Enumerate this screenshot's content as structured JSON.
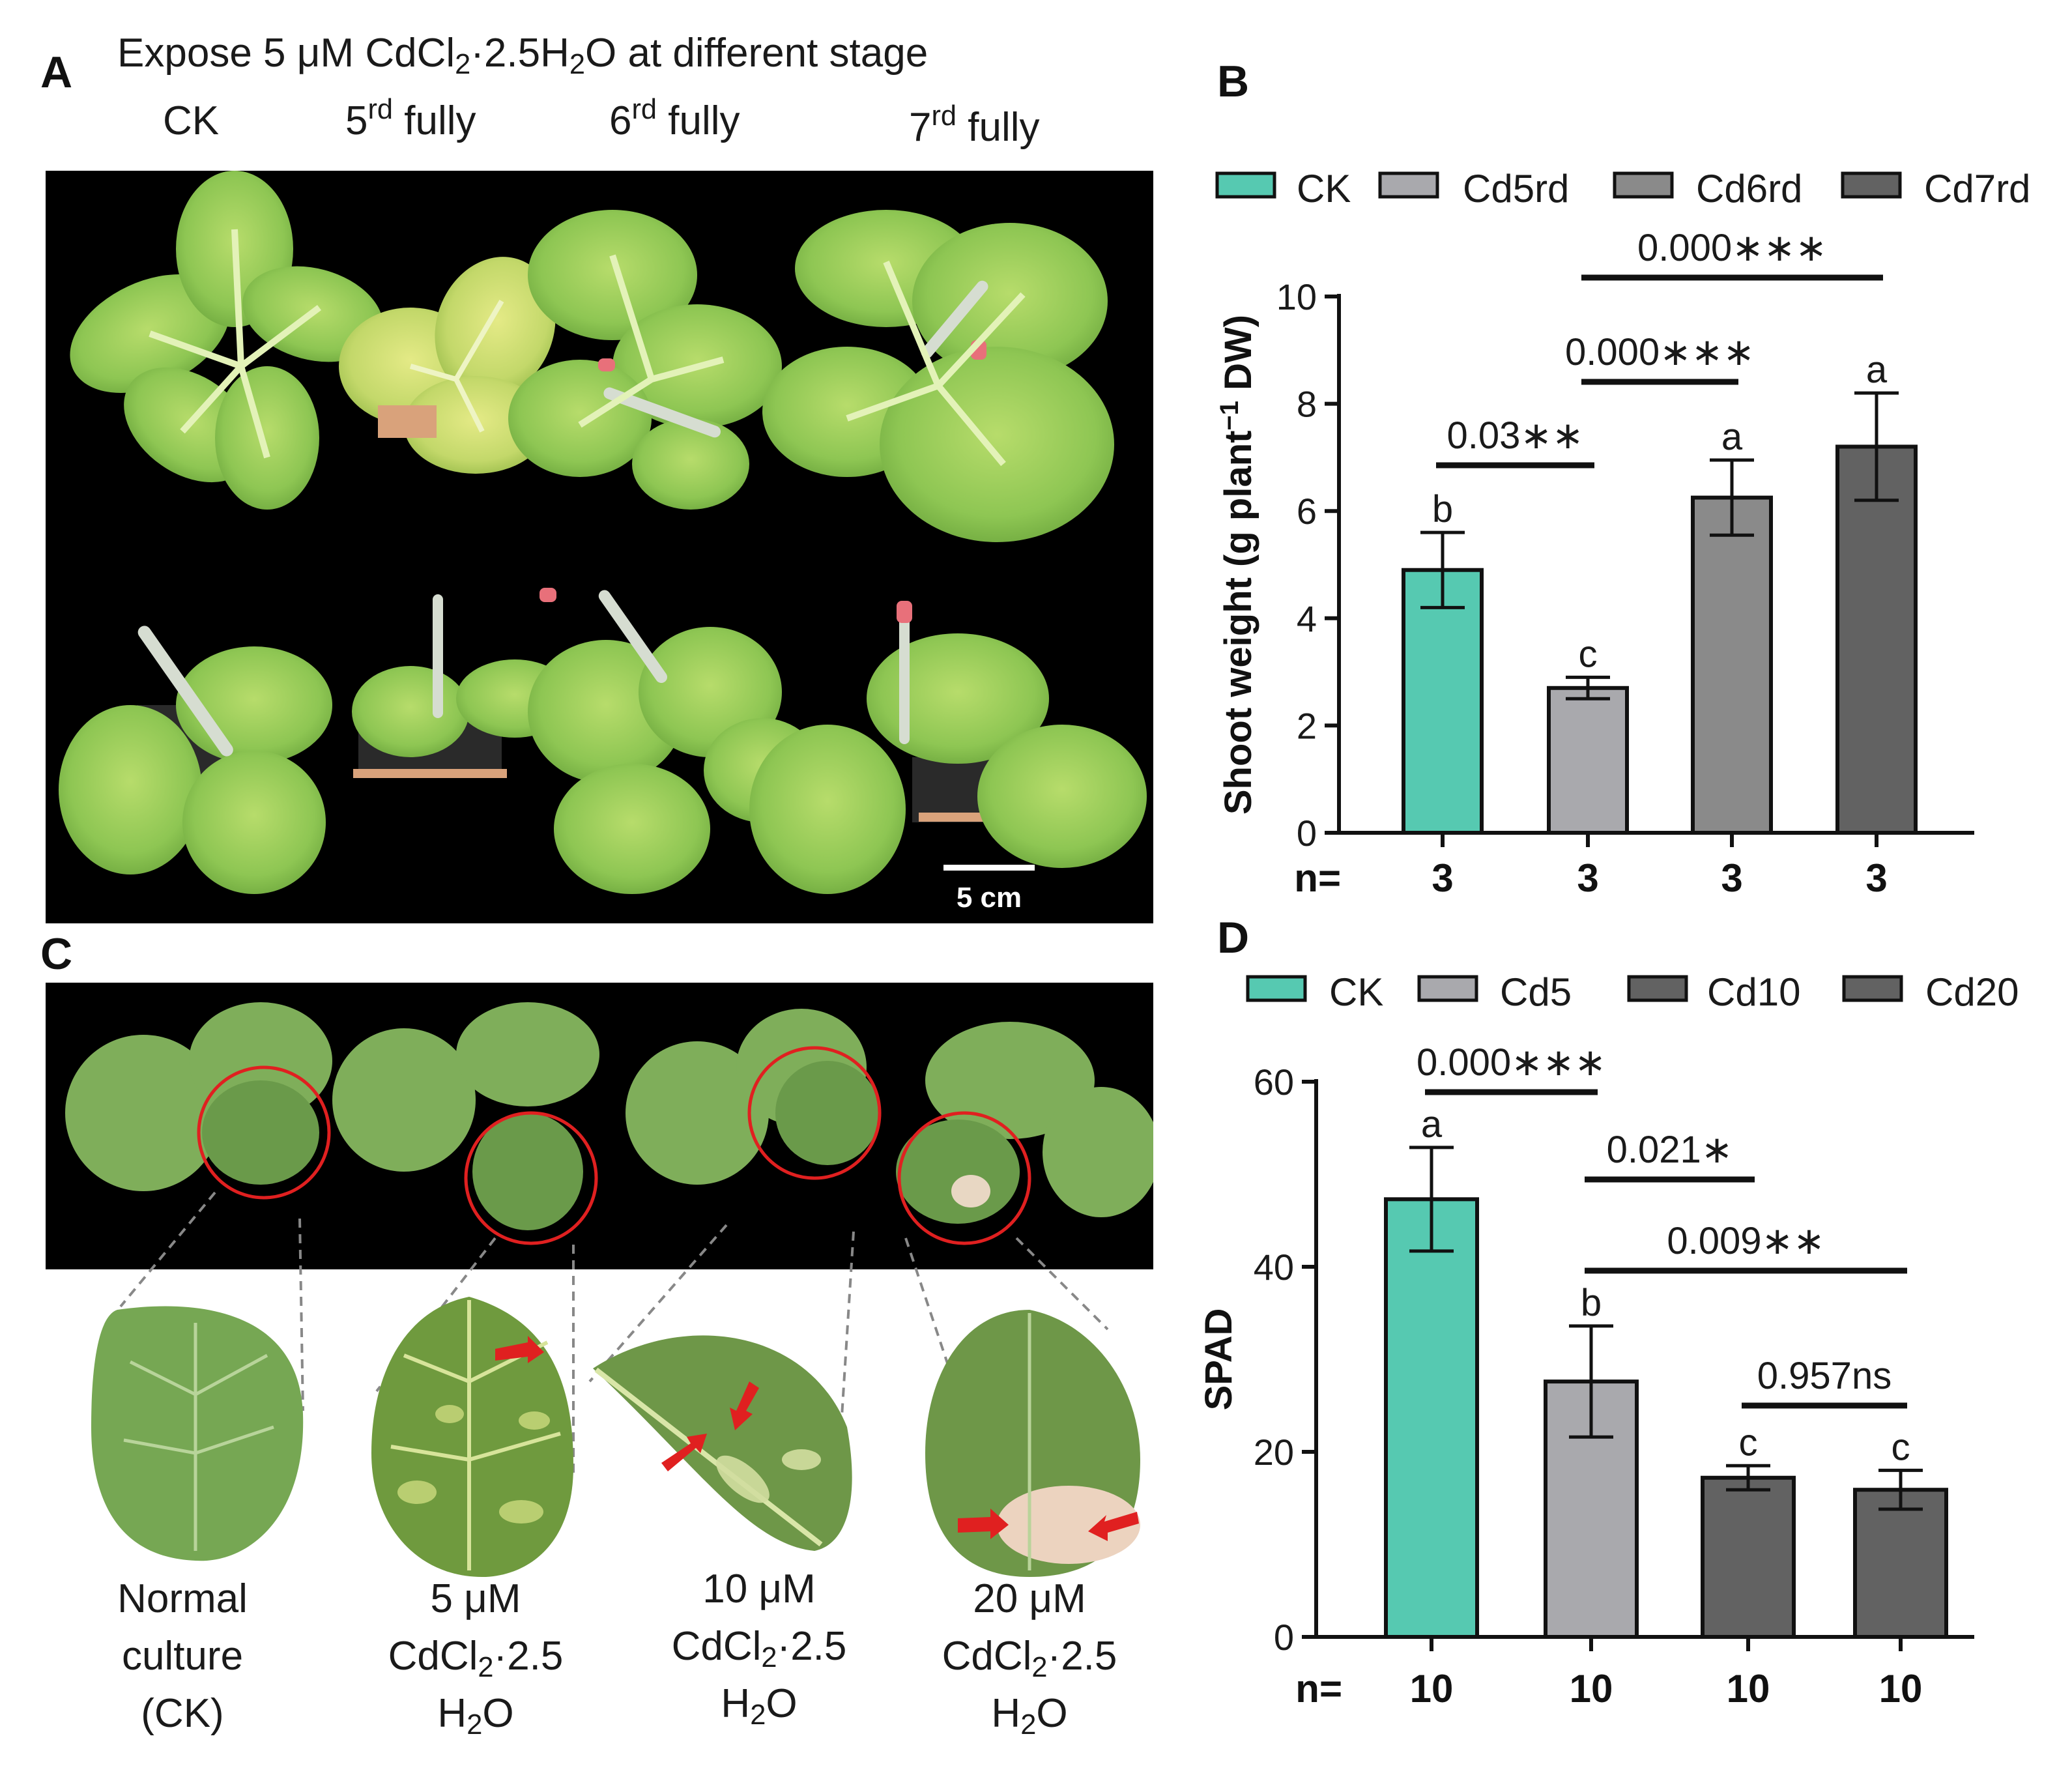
{
  "panel_a": {
    "letter": "A",
    "title_pre": "Expose 5 μM CdCl",
    "title_sub1": "2",
    "title_mid": "·2.5H",
    "title_sub2": "2",
    "title_post": "O at different stage",
    "stages": [
      {
        "main": "CK",
        "sup": "",
        "rest": ""
      },
      {
        "main": "5",
        "sup": "rd",
        "rest": " fully"
      },
      {
        "main": "6",
        "sup": "rd",
        "rest": " fully"
      },
      {
        "main": "7",
        "sup": "rd",
        "rest": " fully"
      }
    ],
    "scale_bar_label": "5 cm"
  },
  "panel_c": {
    "letter": "C",
    "captions": [
      {
        "l1": "Normal",
        "l2": "culture",
        "l3": "(CK)",
        "sub": ""
      },
      {
        "l1": "5 μM",
        "l2": "CdCl",
        "l2b": "·2.5",
        "sub": "2",
        "l3": "H",
        "l3b": "O",
        "sub3": "2"
      },
      {
        "l1": "10 μM",
        "l2": "CdCl",
        "l2b": "·2.5",
        "sub": "2",
        "l3": "H",
        "l3b": "O",
        "sub3": "2"
      },
      {
        "l1": "20 μM",
        "l2": "CdCl",
        "l2b": "·2.5",
        "sub": "2",
        "l3": "H",
        "l3b": "O",
        "sub3": "2"
      }
    ]
  },
  "colors": {
    "ck": "#56c9b1",
    "light_gray": "#a9a9ad",
    "mid_gray": "#8a8a8a",
    "dark_gray": "#626262",
    "leaf": "#8ec653",
    "leaf_dark": "#5f9a37",
    "photo_bg": "#000000",
    "marker_red": "#e02020"
  },
  "chart_data": [
    {
      "panel_letter": "B",
      "type": "bar",
      "categories": [
        "CK",
        "Cd5rd",
        "Cd6rd",
        "Cd7rd"
      ],
      "values": [
        4.9,
        2.7,
        6.25,
        7.2
      ],
      "errors": [
        0.7,
        0.2,
        0.7,
        1.0
      ],
      "letters": [
        "b",
        "c",
        "a",
        "a"
      ],
      "n_prefix": "n=",
      "n": [
        "3",
        "3",
        "3",
        "3"
      ],
      "ylabel": "Shoot weight (g plant",
      "ylabel_sup": "−1",
      "ylabel_post": " DW)",
      "ylim": [
        0,
        10
      ],
      "yticks": [
        0,
        2,
        4,
        6,
        8,
        10
      ],
      "legend_position": "top",
      "comparisons": [
        {
          "from": 0,
          "to": 1,
          "label": "0.03∗∗"
        },
        {
          "from": 1,
          "to": 2,
          "label": "0.000∗∗∗"
        },
        {
          "from": 1,
          "to": 3,
          "label": "0.000∗∗∗"
        }
      ],
      "grid": false
    },
    {
      "panel_letter": "D",
      "type": "bar",
      "categories": [
        "CK",
        "Cd5",
        "Cd10",
        "Cd20"
      ],
      "values": [
        47.3,
        27.6,
        17.2,
        15.9
      ],
      "errors": [
        5.6,
        6.0,
        1.3,
        2.1
      ],
      "letters": [
        "a",
        "b",
        "c",
        "c"
      ],
      "n_prefix": "n=",
      "n": [
        "10",
        "10",
        "10",
        "10"
      ],
      "ylabel": "SPAD",
      "ylabel_sup": "",
      "ylabel_post": "",
      "ylim": [
        0,
        60
      ],
      "yticks": [
        0,
        20,
        40,
        60
      ],
      "legend_position": "top",
      "comparisons": [
        {
          "from": 0,
          "to": 1,
          "label": "0.000∗∗∗"
        },
        {
          "from": 1,
          "to": 2,
          "label": "0.021∗"
        },
        {
          "from": 1,
          "to": 3,
          "label": "0.009∗∗"
        },
        {
          "from": 2,
          "to": 3,
          "label": "0.957ns"
        }
      ],
      "grid": false
    }
  ]
}
